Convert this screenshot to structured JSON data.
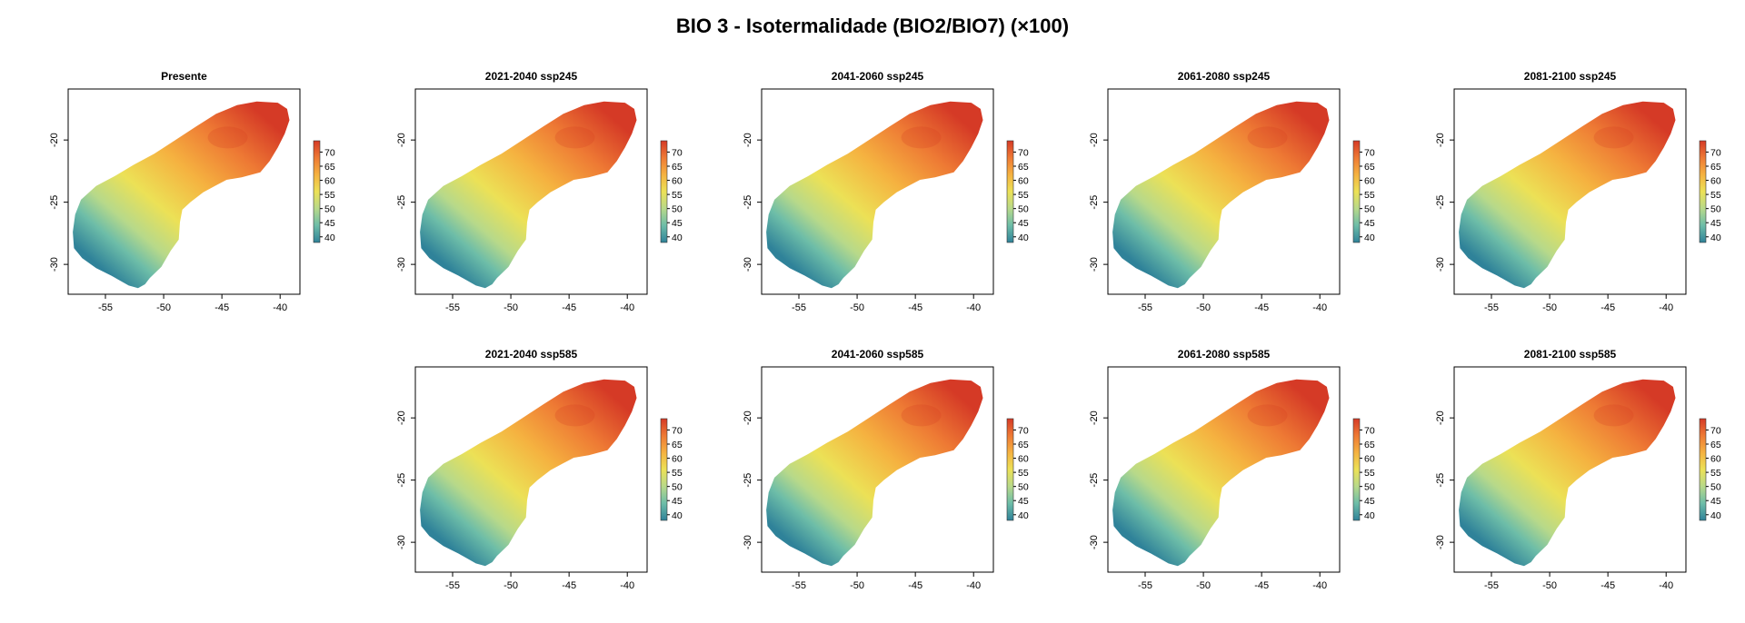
{
  "title": "BIO 3 - Isotermalidade (BIO2/BIO7) (×100)",
  "map_defaults": {
    "x_ticks": [
      -55,
      -50,
      -45,
      -40
    ],
    "y_ticks": [
      -20,
      -25,
      -30
    ],
    "legend_ticks": [
      70,
      65,
      60,
      55,
      50,
      45,
      40
    ],
    "xlim": [
      -58.2,
      -38.3
    ],
    "ylim": [
      -32.4,
      -15.9
    ],
    "color_scale": {
      "min": 38,
      "max": 74,
      "stops": [
        "#2f8299",
        "#6dbda8",
        "#b7d98a",
        "#ece156",
        "#f5b240",
        "#ee7a34",
        "#d53a26"
      ]
    }
  },
  "panels": [
    {
      "title": "Presente",
      "scenario": "present"
    },
    {
      "title": "2021-2040 ssp245",
      "scenario": "ssp245",
      "period": "2021-2040"
    },
    {
      "title": "2041-2060 ssp245",
      "scenario": "ssp245",
      "period": "2041-2060"
    },
    {
      "title": "2061-2080 ssp245",
      "scenario": "ssp245",
      "period": "2061-2080"
    },
    {
      "title": "2081-2100 ssp245",
      "scenario": "ssp245",
      "period": "2081-2100"
    },
    {
      "title": "2021-2040 ssp585",
      "scenario": "ssp585",
      "period": "2021-2040"
    },
    {
      "title": "2041-2060 ssp585",
      "scenario": "ssp585",
      "period": "2041-2060"
    },
    {
      "title": "2061-2080 ssp585",
      "scenario": "ssp585",
      "period": "2061-2080"
    },
    {
      "title": "2081-2100 ssp585",
      "scenario": "ssp585",
      "period": "2081-2100"
    }
  ]
}
